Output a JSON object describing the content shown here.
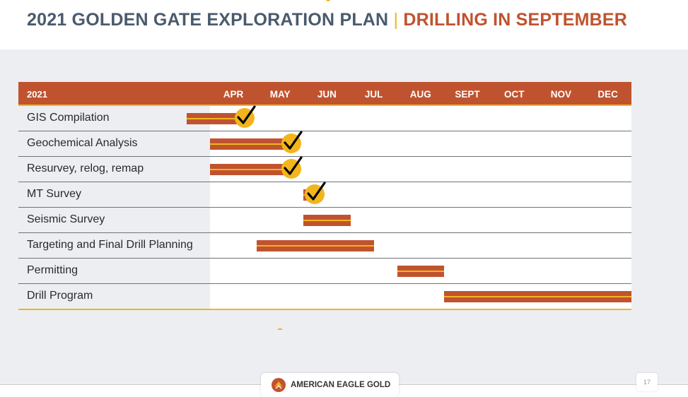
{
  "title": {
    "main": "2021 GOLDEN GATE EXPLORATION PLAN",
    "separator": "|",
    "accent": "DRILLING IN SEPTEMBER"
  },
  "gantt": {
    "year_label": "2021",
    "months": [
      "APR",
      "MAY",
      "JUN",
      "JUL",
      "AUG",
      "SEPT",
      "OCT",
      "NOV",
      "DEC"
    ],
    "tasks": [
      {
        "label": "GIS Compilation",
        "start": -0.5,
        "end": 0.75,
        "complete": true
      },
      {
        "label": "Geochemical Analysis",
        "start": 0,
        "end": 1.75,
        "complete": true
      },
      {
        "label": "Resurvey, relog, remap",
        "start": 0,
        "end": 1.75,
        "complete": true
      },
      {
        "label": "MT Survey",
        "start": 2,
        "end": 2.25,
        "complete": true
      },
      {
        "label": "Seismic Survey",
        "start": 2,
        "end": 3,
        "complete": false
      },
      {
        "label": "Targeting and Final Drill Planning",
        "start": 1,
        "end": 3.5,
        "complete": false
      },
      {
        "label": "Permitting",
        "start": 4,
        "end": 5,
        "complete": false
      },
      {
        "label": "Drill Program",
        "start": 5,
        "end": 9,
        "complete": false
      }
    ]
  },
  "footer": {
    "logo_text": "AMERICAN EAGLE GOLD",
    "logo_icon": "eagle-logo-icon",
    "page_number": "17"
  },
  "colors": {
    "brand_orange": "#c0532f",
    "accent_yellow": "#f2b51d",
    "title_slate": "#4a5a6e"
  }
}
